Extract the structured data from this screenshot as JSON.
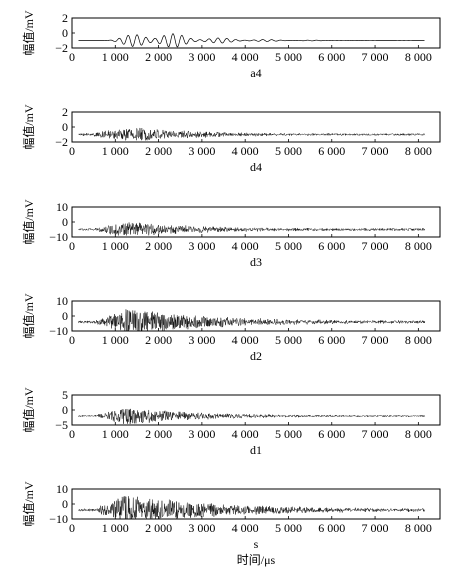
{
  "chart_data": [
    {
      "type": "line",
      "subplot_label": "a4",
      "ylabel": "幅值/mV",
      "xlabel": "",
      "xlim": [
        0,
        8500
      ],
      "ylim": [
        -2,
        2
      ],
      "xticks": [
        0,
        1000,
        2000,
        3000,
        4000,
        5000,
        6000,
        7000,
        8000
      ],
      "xtick_labels": [
        "0",
        "1 000",
        "2 000",
        "3 000",
        "4 000",
        "5 000",
        "6 000",
        "7 000",
        "8 000"
      ],
      "yticks": [
        -2,
        0,
        2
      ],
      "ytick_labels": [
        "−2",
        "0",
        "2"
      ],
      "signal": {
        "baseline": -1.0,
        "start": 150,
        "end": 8150,
        "onset": 700,
        "peak_time": 1900,
        "peak_amp": 1.4,
        "decay": 1100,
        "noise": 0.0,
        "kind": "smooth"
      }
    },
    {
      "type": "line",
      "subplot_label": "d4",
      "ylabel": "幅值/mV",
      "xlabel": "",
      "xlim": [
        0,
        8500
      ],
      "ylim": [
        -2,
        2
      ],
      "xticks": [
        0,
        1000,
        2000,
        3000,
        4000,
        5000,
        6000,
        7000,
        8000
      ],
      "xtick_labels": [
        "0",
        "1 000",
        "2 000",
        "3 000",
        "4 000",
        "5 000",
        "6 000",
        "7 000",
        "8 000"
      ],
      "yticks": [
        -2,
        0,
        2
      ],
      "ytick_labels": [
        "−2",
        "0",
        "2"
      ],
      "signal": {
        "baseline": -1.0,
        "start": 150,
        "end": 8150,
        "onset": 150,
        "peak_time": 1500,
        "peak_amp": 0.9,
        "decay": 1500,
        "noise": 0.12,
        "kind": "noisy"
      }
    },
    {
      "type": "line",
      "subplot_label": "d3",
      "ylabel": "幅值/mV",
      "xlabel": "",
      "xlim": [
        0,
        8500
      ],
      "ylim": [
        -10,
        10
      ],
      "xticks": [
        0,
        1000,
        2000,
        3000,
        4000,
        5000,
        6000,
        7000,
        8000
      ],
      "xtick_labels": [
        "0",
        "1 000",
        "2 000",
        "3 000",
        "4 000",
        "5 000",
        "6 000",
        "7 000",
        "8 000"
      ],
      "yticks": [
        -10,
        0,
        10
      ],
      "ytick_labels": [
        "−10",
        "0",
        "10"
      ],
      "signal": {
        "baseline": -5.0,
        "start": 150,
        "end": 8150,
        "onset": 500,
        "peak_time": 1200,
        "peak_amp": 5.0,
        "decay": 1600,
        "noise": 0.8,
        "kind": "noisy"
      }
    },
    {
      "type": "line",
      "subplot_label": "d2",
      "ylabel": "幅值/mV",
      "xlabel": "",
      "xlim": [
        0,
        8500
      ],
      "ylim": [
        -10,
        10
      ],
      "xticks": [
        0,
        1000,
        2000,
        3000,
        4000,
        5000,
        6000,
        7000,
        8000
      ],
      "xtick_labels": [
        "0",
        "1 000",
        "2 000",
        "3 000",
        "4 000",
        "5 000",
        "6 000",
        "7 000",
        "8 000"
      ],
      "yticks": [
        -10,
        0,
        10
      ],
      "ytick_labels": [
        "−10",
        "0",
        "10"
      ],
      "signal": {
        "baseline": -4.0,
        "start": 150,
        "end": 8150,
        "onset": 500,
        "peak_time": 1300,
        "peak_amp": 9.0,
        "decay": 1900,
        "noise": 0.8,
        "kind": "noisy"
      }
    },
    {
      "type": "line",
      "subplot_label": "d1",
      "ylabel": "幅值/mV",
      "xlabel": "",
      "xlim": [
        0,
        8500
      ],
      "ylim": [
        -5,
        5
      ],
      "xticks": [
        0,
        1000,
        2000,
        3000,
        4000,
        5000,
        6000,
        7000,
        8000
      ],
      "xtick_labels": [
        "0",
        "1 000",
        "2 000",
        "3 000",
        "4 000",
        "5 000",
        "6 000",
        "7 000",
        "8 000"
      ],
      "yticks": [
        -5,
        0,
        5
      ],
      "ytick_labels": [
        "−5",
        "0",
        "5"
      ],
      "signal": {
        "baseline": -2.0,
        "start": 150,
        "end": 8150,
        "onset": 500,
        "peak_time": 1300,
        "peak_amp": 3.0,
        "decay": 1500,
        "noise": 0.25,
        "kind": "noisy"
      }
    },
    {
      "type": "line",
      "subplot_label": "s",
      "ylabel": "幅值/mV",
      "xlabel": "时间/μs",
      "xlim": [
        0,
        8500
      ],
      "ylim": [
        -10,
        10
      ],
      "xticks": [
        0,
        1000,
        2000,
        3000,
        4000,
        5000,
        6000,
        7000,
        8000
      ],
      "xtick_labels": [
        "0",
        "1 000",
        "2 000",
        "3 000",
        "4 000",
        "5 000",
        "6 000",
        "7 000",
        "8 000"
      ],
      "yticks": [
        -10,
        0,
        10
      ],
      "ytick_labels": [
        "−10",
        "0",
        "10"
      ],
      "signal": {
        "baseline": -4.0,
        "start": 150,
        "end": 8150,
        "onset": 500,
        "peak_time": 1200,
        "peak_amp": 10.0,
        "decay": 2200,
        "noise": 0.8,
        "kind": "noisy"
      }
    }
  ]
}
